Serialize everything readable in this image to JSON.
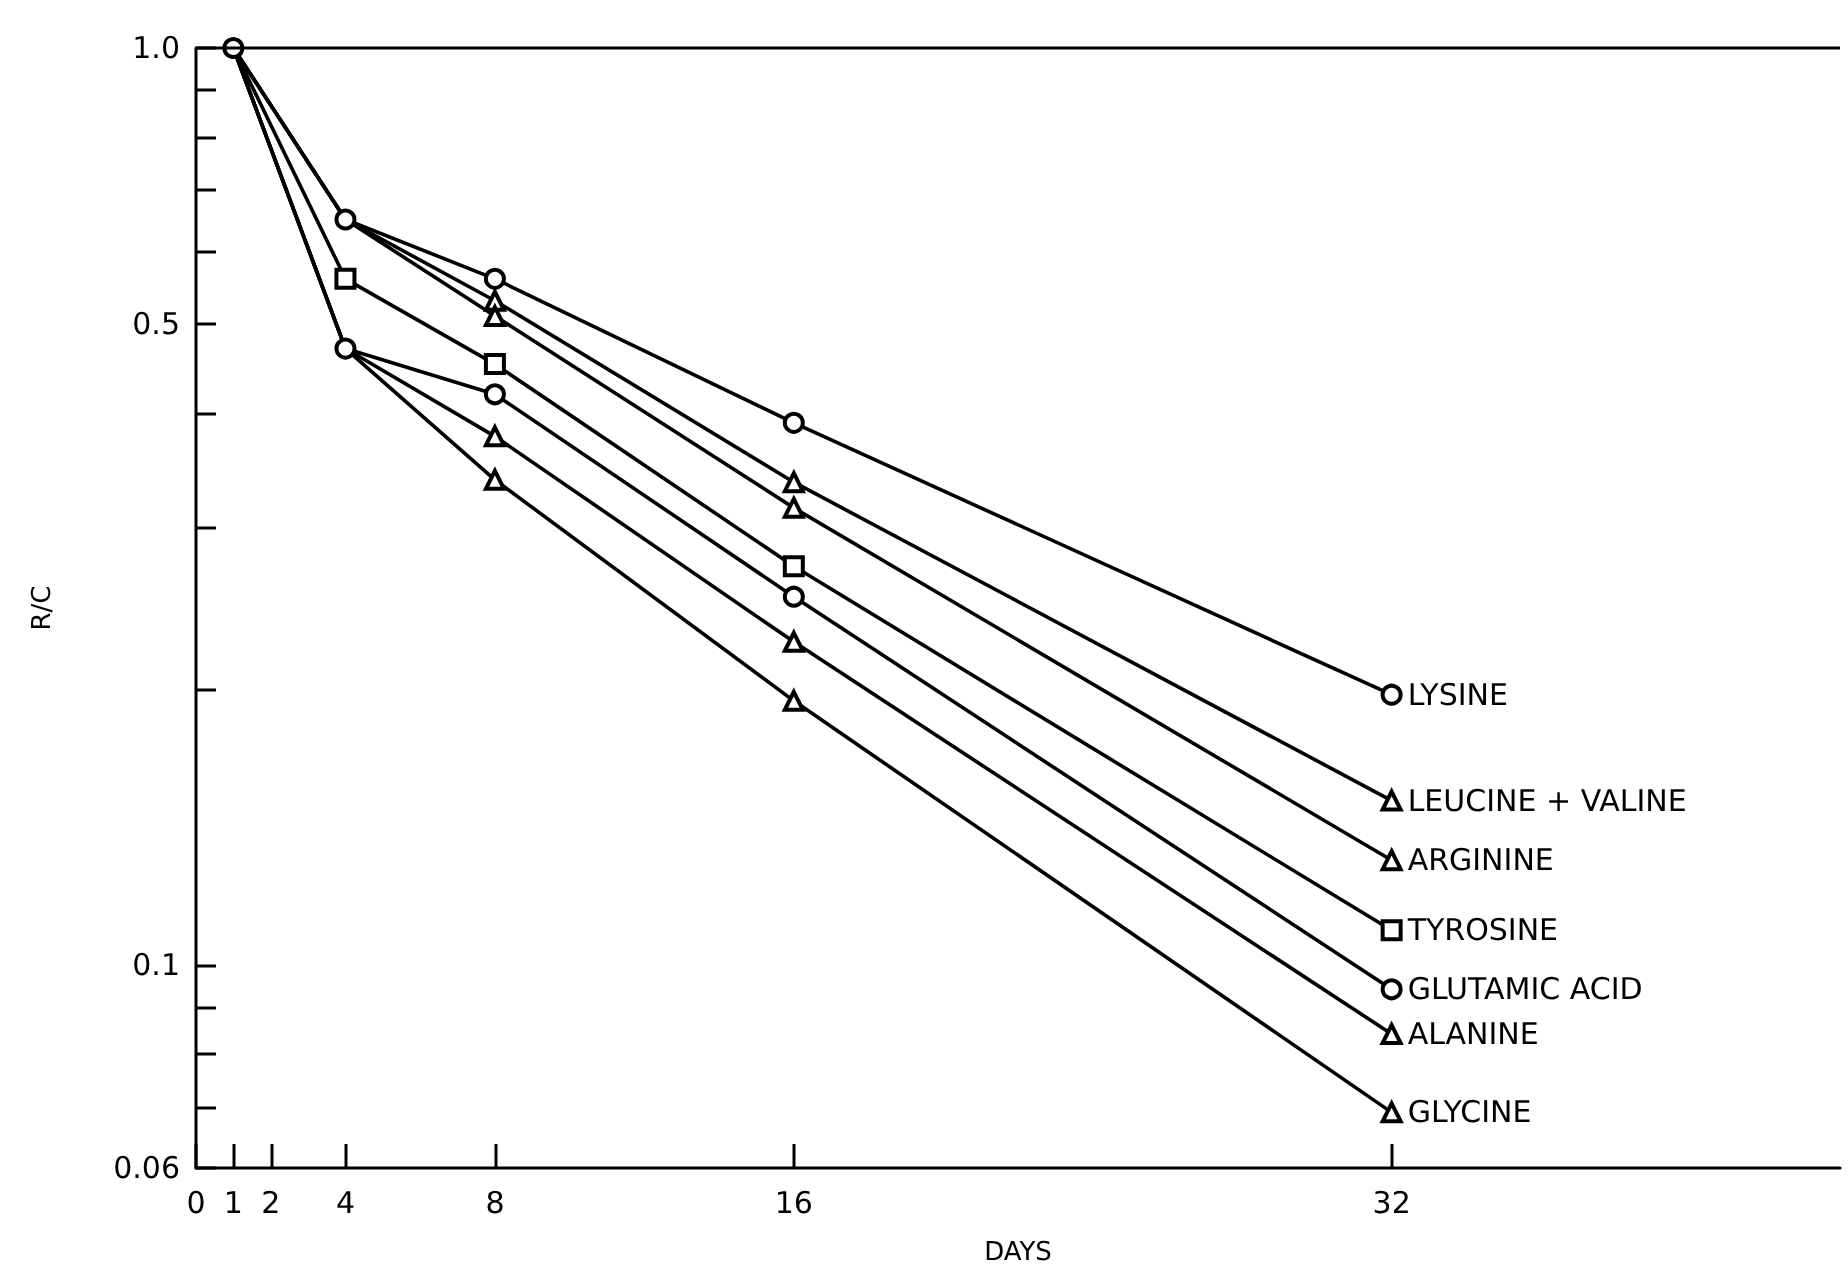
{
  "chart_data": {
    "type": "line",
    "xlabel": "DAYS",
    "ylabel": "R/C",
    "x": [
      1,
      4,
      8,
      16,
      32
    ],
    "series": [
      {
        "name": "LYSINE",
        "color": "#000000",
        "marker": "circle",
        "values": [
          1.0,
          0.65,
          0.56,
          0.39,
          0.197
        ]
      },
      {
        "name": "LEUCINE + VALINE",
        "color": "#000000",
        "marker": "triangle",
        "values": [
          1.0,
          0.65,
          0.53,
          0.336,
          0.151
        ]
      },
      {
        "name": "ARGININE",
        "color": "#000000",
        "marker": "triangle",
        "values": [
          1.0,
          0.65,
          0.51,
          0.315,
          0.13
        ]
      },
      {
        "name": "TYROSINE",
        "color": "#000000",
        "marker": "square",
        "values": [
          1.0,
          0.56,
          0.452,
          0.272,
          0.109
        ]
      },
      {
        "name": "GLUTAMIC ACID",
        "color": "#000000",
        "marker": "circle",
        "values": [
          1.0,
          0.47,
          0.419,
          0.252,
          0.094
        ]
      },
      {
        "name": "ALANINE",
        "color": "#000000",
        "marker": "triangle",
        "values": [
          1.0,
          0.47,
          0.377,
          0.225,
          0.084
        ]
      },
      {
        "name": "GLYCINE",
        "color": "#000000",
        "marker": "triangle",
        "values": [
          1.0,
          0.47,
          0.338,
          0.194,
          0.069
        ]
      }
    ],
    "xlim": [
      0,
      44
    ],
    "xticks": [
      0,
      1,
      2,
      4,
      8,
      16,
      32
    ],
    "log": "y",
    "ylim": [
      0.06,
      1.0
    ],
    "yticks": [
      {
        "value": 0.06,
        "label": "0.06"
      },
      {
        "value": 0.07,
        "label": null
      },
      {
        "value": 0.08,
        "label": null
      },
      {
        "value": 0.09,
        "label": null
      },
      {
        "value": 0.1,
        "label": "0.1"
      },
      {
        "value": 0.2,
        "label": null
      },
      {
        "value": 0.3,
        "label": null
      },
      {
        "value": 0.4,
        "label": null
      },
      {
        "value": 0.5,
        "label": "0.5"
      },
      {
        "value": 0.6,
        "label": null
      },
      {
        "value": 0.7,
        "label": null
      },
      {
        "value": 0.8,
        "label": null
      },
      {
        "value": 0.9,
        "label": null
      },
      {
        "value": 1.0,
        "label": "1.0"
      }
    ],
    "ref_lines": [
      {
        "axis": "y",
        "value": 1.0
      }
    ],
    "grid": false,
    "legend": false,
    "line_style": "solid"
  }
}
